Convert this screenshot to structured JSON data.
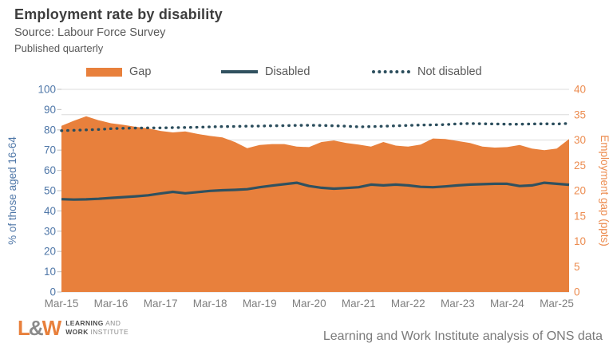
{
  "header": {
    "title": "Employment rate by disability",
    "source": "Source: Labour Force Survey",
    "published": "Published quarterly"
  },
  "legend": {
    "items": [
      {
        "label": "Gap",
        "style": "area",
        "color": "#e8803c"
      },
      {
        "label": "Disabled",
        "style": "line",
        "color": "#30515f"
      },
      {
        "label": "Not disabled",
        "style": "dotted",
        "color": "#2b4d5c"
      }
    ]
  },
  "chart_data": {
    "type": "line",
    "frequency": "quarterly",
    "x_start": "Mar-15",
    "x_end": "Jun-25",
    "x_tick_labels": [
      "Mar-15",
      "Mar-16",
      "Mar-17",
      "Mar-18",
      "Mar-19",
      "Mar-20",
      "Mar-21",
      "Mar-22",
      "Mar-23",
      "Mar-24",
      "Mar-25"
    ],
    "left_axis": {
      "label": "% of those aged 16-64",
      "min": 0,
      "max": 100,
      "ticks": [
        0,
        10,
        20,
        30,
        40,
        50,
        60,
        70,
        80,
        90,
        100
      ],
      "color": "#4f77a8"
    },
    "right_axis": {
      "label": "Employment gap (ppts)",
      "min": 0,
      "max": 40,
      "ticks": [
        0,
        5,
        10,
        15,
        20,
        25,
        30,
        35,
        40
      ],
      "color": "#ec8c50"
    },
    "grid": {
      "on": true,
      "color": "#dcdcdc",
      "at_right_ticks": true
    },
    "series": [
      {
        "name": "Gap",
        "axis": "right",
        "style": "area",
        "color": "#e8803c",
        "values": [
          32.8,
          33.8,
          34.7,
          33.9,
          33.3,
          33.0,
          32.6,
          32.3,
          31.8,
          31.5,
          31.7,
          31.2,
          30.8,
          30.5,
          29.6,
          28.4,
          29.0,
          29.2,
          29.2,
          28.7,
          28.6,
          29.6,
          29.9,
          29.4,
          29.1,
          28.7,
          29.6,
          28.9,
          28.7,
          29.1,
          30.3,
          30.2,
          29.8,
          29.4,
          28.7,
          28.5,
          28.6,
          29.0,
          28.3,
          28.0,
          28.3,
          30.2
        ]
      },
      {
        "name": "Disabled",
        "axis": "left",
        "style": "line",
        "color": "#30515f",
        "values": [
          45.8,
          45.6,
          45.7,
          46.0,
          46.4,
          46.8,
          47.2,
          47.7,
          48.6,
          49.4,
          48.7,
          49.3,
          49.9,
          50.2,
          50.4,
          50.7,
          51.7,
          52.5,
          53.2,
          53.9,
          52.3,
          51.4,
          51.0,
          51.3,
          51.7,
          53.0,
          52.6,
          53.0,
          52.6,
          51.9,
          51.7,
          52.1,
          52.6,
          53.0,
          53.2,
          53.4,
          53.4,
          52.3,
          52.6,
          53.9,
          53.4,
          52.9
        ]
      },
      {
        "name": "Not disabled",
        "axis": "left",
        "style": "dotted",
        "color": "#2b4d5c",
        "values": [
          79.6,
          79.8,
          80.0,
          80.2,
          80.6,
          80.8,
          80.9,
          81.0,
          81.0,
          81.1,
          81.2,
          81.3,
          81.5,
          81.6,
          81.7,
          81.8,
          81.9,
          82.0,
          82.1,
          82.2,
          82.3,
          82.2,
          82.0,
          81.8,
          81.5,
          81.6,
          81.8,
          82.0,
          82.2,
          82.4,
          82.5,
          82.6,
          83.0,
          83.1,
          83.0,
          82.9,
          82.8,
          82.8,
          82.9,
          83.0,
          82.9,
          83.2
        ]
      }
    ],
    "xlabel_color": "#7f7f7f"
  },
  "footer": {
    "logo": {
      "l": "L",
      "amp": "&",
      "w": "W",
      "line1_bold": "LEARNING",
      "line1_rest": " AND",
      "line2_bold": "WORK",
      "line2_rest": " INSTITUTE"
    },
    "credit": "Learning and Work Institute analysis of ONS data"
  }
}
